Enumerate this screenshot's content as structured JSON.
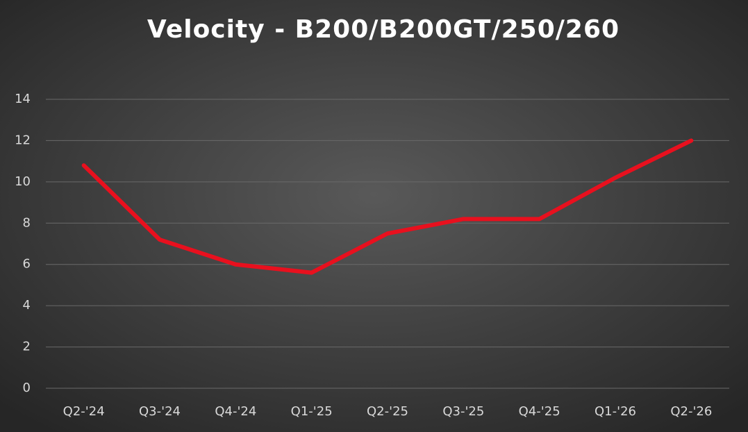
{
  "chart_data": {
    "type": "line",
    "title": "Velocity - B200/B200GT/250/260",
    "categories": [
      "Q2-'24",
      "Q3-'24",
      "Q4-'24",
      "Q1-'25",
      "Q2-'25",
      "Q3-'25",
      "Q4-'25",
      "Q1-'26",
      "Q2-'26"
    ],
    "series": [
      {
        "name": "Velocity",
        "color": "#e8101e",
        "values": [
          10.8,
          7.2,
          6.0,
          5.6,
          7.5,
          8.2,
          8.2,
          10.2,
          12.0
        ]
      }
    ],
    "ylim": [
      0,
      14
    ],
    "yticks": [
      0,
      2,
      4,
      6,
      8,
      10,
      12,
      14
    ],
    "grid": true,
    "legend": false
  }
}
